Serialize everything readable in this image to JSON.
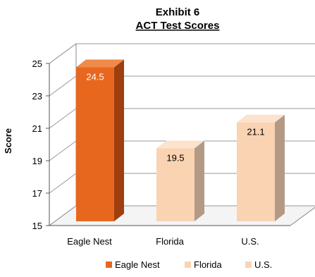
{
  "chart_data": {
    "type": "bar",
    "title": "Exhibit 6",
    "subtitle": "ACT Test Scores",
    "xlabel": "",
    "ylabel": "Score",
    "categories": [
      "Eagle Nest",
      "Florida",
      "U.S."
    ],
    "values": [
      24.5,
      19.5,
      21.1
    ],
    "data_labels": [
      "24.5",
      "19.5",
      "21.1"
    ],
    "ylim": [
      15,
      25
    ],
    "yticks": [
      15,
      17,
      19,
      21,
      23,
      25
    ],
    "ytick_labels": [
      "15",
      "17",
      "19",
      "21",
      "23",
      "25"
    ],
    "grid": true,
    "three_d": true,
    "legend_position": "bottom",
    "legend": [
      "Eagle Nest",
      "Florida",
      "U.S."
    ],
    "colors": {
      "Eagle Nest": {
        "front": "#e8671f",
        "top": "#f08a48",
        "side": "#9e3f10"
      },
      "Florida": {
        "front": "#fad3b2",
        "top": "#fce3cd",
        "side": "#b29a84"
      },
      "U.S.": {
        "front": "#fad3b2",
        "top": "#fce3cd",
        "side": "#b29a84"
      }
    },
    "label_colors": {
      "Eagle Nest": "#ffffff",
      "Florida": "#000000",
      "U.S.": "#000000"
    }
  }
}
